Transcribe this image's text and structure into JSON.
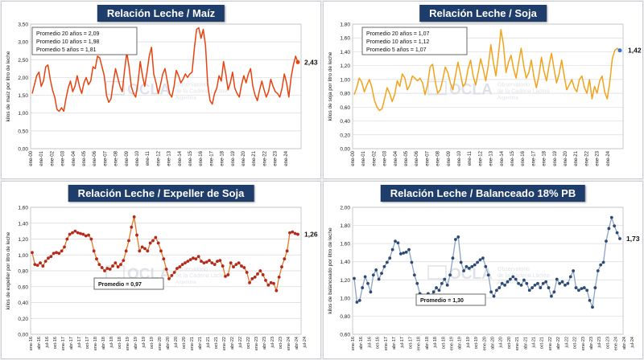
{
  "colors": {
    "maiz": "#e8420f",
    "soja": "#f2a31b",
    "expeller": "#b5281c",
    "expeller_line": "#e07b2a",
    "balanceado": "#2c4a73",
    "balanceado_line": "#8aa3c4",
    "title_bg": "#1f3d6b"
  },
  "watermark": {
    "name": "OCLA",
    "line1": "Observatorio",
    "line2": "de la Cadena Láctea",
    "line3": "Argentina"
  },
  "chart_data": [
    {
      "id": "maiz",
      "type": "line",
      "title": "Relación Leche / Maíz",
      "ylabel": "kilos de maíz por litro de leche",
      "ylim": [
        0,
        3.5
      ],
      "yticks": [
        "0,00",
        "0,50",
        "1,00",
        "1,50",
        "2,00",
        "2,50",
        "3,00",
        "3,50"
      ],
      "grid": true,
      "xticks": [
        "ene-00",
        "ene-01",
        "ene-02",
        "ene-03",
        "ene-04",
        "ene-05",
        "ene-06",
        "ene-07",
        "ene-08",
        "ene-09",
        "ene-10",
        "ene-11",
        "ene-12",
        "ene-13",
        "ene-14",
        "ene-15",
        "ene-16",
        "ene-17",
        "ene-18",
        "ene-19",
        "ene-20",
        "ene-21",
        "ene-22",
        "ene-23",
        "ene-24"
      ],
      "x_start": 2000.0,
      "x_end": 2025.0,
      "annotation_lines": [
        "Promedio 20 años = 2,09",
        "Promedio 10 años = 1,98",
        "Promedio  5 años = 1,81"
      ],
      "last_label": "2,43",
      "values": [
        1.55,
        1.8,
        2.05,
        2.15,
        1.75,
        1.9,
        2.3,
        2.35,
        1.95,
        1.65,
        1.45,
        1.1,
        1.05,
        1.15,
        1.05,
        1.4,
        1.7,
        1.9,
        1.6,
        1.75,
        2.05,
        1.75,
        1.55,
        1.85,
        2.0,
        1.8,
        1.9,
        2.3,
        2.25,
        2.6,
        2.55,
        2.3,
        2.05,
        1.5,
        1.3,
        1.4,
        1.85,
        2.25,
        2.0,
        1.75,
        1.6,
        2.2,
        2.7,
        2.3,
        1.75,
        1.55,
        1.45,
        1.85,
        2.45,
        2.05,
        1.75,
        2.15,
        2.6,
        2.85,
        2.1,
        1.85,
        1.55,
        1.8,
        2.1,
        2.25,
        1.9,
        1.55,
        1.45,
        1.75,
        2.2,
        2.05,
        1.85,
        1.95,
        2.1,
        2.0,
        2.1,
        2.15,
        2.8,
        3.35,
        3.4,
        3.1,
        3.35,
        2.9,
        1.8,
        1.35,
        1.25,
        1.55,
        1.7,
        2.05,
        1.9,
        2.45,
        2.1,
        1.65,
        1.85,
        2.15,
        1.7,
        1.55,
        1.45,
        1.8,
        2.05,
        1.85,
        2.1,
        2.25,
        1.75,
        1.5,
        1.35,
        1.65,
        1.9,
        1.65,
        1.45,
        1.6,
        1.95,
        1.75,
        1.6,
        1.55,
        1.45,
        1.7,
        2.1,
        1.85,
        1.45,
        2.0,
        2.35,
        2.6,
        2.43
      ]
    },
    {
      "id": "soja",
      "type": "line",
      "title": "Relación Leche / Soja",
      "ylabel": "kilos de soja por litro de leche",
      "ylim": [
        0,
        1.8
      ],
      "yticks": [
        "0,00",
        "0,20",
        "0,40",
        "0,60",
        "0,80",
        "1,00",
        "1,20",
        "1,40",
        "1,60",
        "1,80"
      ],
      "grid": true,
      "xticks": [
        "ene-00",
        "ene-01",
        "ene-02",
        "ene-03",
        "ene-04",
        "ene-05",
        "ene-06",
        "ene-07",
        "ene-08",
        "ene-09",
        "ene-10",
        "ene-11",
        "ene-12",
        "ene-13",
        "ene-14",
        "ene-15",
        "ene-16",
        "ene-17",
        "ene-18",
        "ene-19",
        "ene-20",
        "ene-21",
        "ene-22",
        "ene-23",
        "ene-24"
      ],
      "x_start": 2000.0,
      "x_end": 2025.0,
      "annotation_lines": [
        "Promedio 20 años = 1,07",
        "Promedio 10 años = 1,12",
        "Promedio  5 años = 1,07"
      ],
      "last_label": "1,42",
      "values": [
        0.78,
        0.88,
        1.02,
        0.96,
        0.82,
        0.92,
        1.0,
        0.88,
        0.7,
        0.6,
        0.55,
        0.58,
        0.72,
        0.88,
        0.8,
        0.68,
        0.78,
        0.98,
        0.9,
        1.08,
        1.02,
        0.85,
        0.92,
        1.05,
        1.02,
        0.98,
        1.02,
        0.95,
        0.78,
        0.92,
        1.18,
        1.22,
        0.98,
        0.8,
        0.85,
        1.0,
        1.18,
        1.1,
        0.95,
        0.85,
        1.05,
        1.25,
        1.08,
        0.9,
        0.95,
        1.15,
        1.28,
        1.05,
        0.92,
        1.1,
        1.3,
        1.15,
        0.98,
        1.2,
        1.5,
        1.25,
        1.05,
        1.35,
        1.72,
        1.5,
        1.1,
        1.25,
        1.35,
        1.15,
        1.02,
        1.25,
        1.45,
        1.2,
        1.02,
        1.1,
        1.28,
        1.05,
        0.88,
        1.05,
        1.32,
        1.12,
        0.98,
        1.2,
        1.38,
        1.15,
        0.95,
        1.08,
        1.28,
        1.05,
        0.85,
        0.92,
        1.0,
        0.88,
        0.82,
        1.0,
        1.05,
        0.88,
        0.8,
        1.0,
        0.72,
        0.9,
        0.8,
        0.98,
        1.05,
        0.82,
        0.72,
        0.95,
        1.3,
        1.42,
        1.45,
        1.42
      ]
    },
    {
      "id": "expeller",
      "type": "line",
      "title": "Relación Leche / Expeller de Soja",
      "ylabel": "kilos de expeller por litro de leche",
      "ylim": [
        0,
        1.6
      ],
      "yticks": [
        "0,00",
        "0,20",
        "0,40",
        "0,60",
        "0,80",
        "1,00",
        "1,20",
        "1,40",
        "1,60"
      ],
      "grid": true,
      "xticks": [
        "ene-16",
        "abr-16",
        "jul-16",
        "oct-16",
        "ene-17",
        "abr-17",
        "jul-17",
        "oct-17",
        "ene-18",
        "abr-18",
        "jul-18",
        "oct-18",
        "ene-19",
        "abr-19",
        "jul-19",
        "oct-19",
        "ene-20",
        "abr-20",
        "jul-20",
        "oct-20",
        "ene-21",
        "abr-21",
        "jul-21",
        "oct-21",
        "ene-22",
        "abr-22",
        "jul-22",
        "oct-22",
        "ene-23",
        "abr-23",
        "jul-23",
        "oct-23",
        "ene-24",
        "abr-24",
        "jul-24"
      ],
      "annotation_lines": [
        "Promedio = 0,97"
      ],
      "last_label": "1,26",
      "values": [
        1.03,
        0.88,
        0.87,
        0.9,
        0.86,
        0.92,
        0.96,
        0.98,
        1.02,
        1.03,
        1.02,
        1.05,
        1.1,
        1.2,
        1.26,
        1.28,
        1.3,
        1.28,
        1.27,
        1.26,
        1.24,
        1.25,
        1.2,
        1.05,
        0.95,
        0.88,
        0.84,
        0.8,
        0.83,
        0.82,
        0.86,
        0.9,
        0.85,
        0.88,
        0.93,
        1.05,
        1.18,
        1.35,
        1.48,
        1.25,
        1.05,
        1.1,
        1.08,
        1.05,
        1.15,
        1.18,
        1.22,
        1.15,
        1.05,
        0.95,
        0.82,
        0.7,
        0.74,
        0.78,
        0.83,
        0.85,
        0.88,
        0.9,
        0.92,
        0.94,
        0.96,
        0.95,
        0.98,
        0.92,
        0.9,
        0.91,
        0.93,
        0.9,
        0.88,
        0.92,
        0.93,
        0.86,
        0.73,
        0.75,
        0.9,
        0.85,
        0.88,
        0.9,
        0.86,
        0.84,
        0.78,
        0.65,
        0.7,
        0.72,
        0.76,
        0.8,
        0.75,
        0.68,
        0.62,
        0.65,
        0.64,
        0.55,
        0.72,
        0.85,
        0.95,
        1.05,
        1.28,
        1.29,
        1.27,
        1.26
      ]
    },
    {
      "id": "balanceado",
      "type": "line",
      "title": "Relación Leche / Balanceado 18% PB",
      "ylabel": "kilos de balanceado por litro de leche",
      "ylim": [
        0.6,
        2.1
      ],
      "yticks": [
        "0,60",
        "0,80",
        "1,00",
        "1,20",
        "1,40",
        "1,60",
        "1,80",
        "2,00"
      ],
      "grid": true,
      "xticks": [
        "ene-16",
        "abr-16",
        "jul-16",
        "oct-16",
        "ene-17",
        "abr-17",
        "jul-17",
        "oct-17",
        "ene-18",
        "abr-18",
        "jul-18",
        "oct-18",
        "ene-19",
        "abr-19",
        "jul-19",
        "oct-19",
        "ene-20",
        "abr-20",
        "jul-20",
        "oct-20",
        "ene-21",
        "abr-21",
        "jul-21",
        "oct-21",
        "ene-22",
        "abr-22",
        "jul-22",
        "oct-22",
        "ene-23",
        "abr-23",
        "jul-23",
        "oct-23",
        "ene-24",
        "abr-24",
        "jul-24"
      ],
      "annotation_lines": [
        "Promedio = 1,30"
      ],
      "last_label": "1,73",
      "values": [
        1.26,
        0.98,
        1.0,
        1.15,
        1.28,
        1.2,
        1.1,
        1.3,
        1.36,
        1.25,
        1.32,
        1.4,
        1.45,
        1.5,
        1.6,
        1.7,
        1.68,
        1.55,
        1.56,
        1.57,
        1.6,
        1.45,
        1.3,
        1.2,
        1.08,
        0.97,
        1.05,
        1.08,
        1.05,
        1.1,
        1.15,
        1.12,
        1.2,
        1.25,
        1.18,
        1.3,
        1.5,
        1.72,
        1.75,
        1.45,
        1.35,
        1.4,
        1.38,
        1.4,
        1.42,
        1.45,
        1.48,
        1.5,
        1.4,
        1.3,
        1.1,
        1.05,
        1.12,
        1.15,
        1.2,
        1.18,
        1.22,
        1.25,
        1.28,
        1.25,
        1.2,
        1.18,
        1.24,
        1.2,
        1.12,
        1.15,
        1.18,
        1.2,
        1.15,
        1.2,
        1.22,
        1.15,
        1.05,
        1.1,
        1.25,
        1.2,
        1.22,
        1.18,
        1.2,
        1.28,
        1.35,
        1.15,
        1.12,
        1.14,
        1.15,
        1.12,
        1.0,
        0.92,
        1.15,
        1.35,
        1.42,
        1.45,
        1.7,
        1.85,
        1.98,
        1.88,
        1.8,
        1.73
      ]
    }
  ]
}
